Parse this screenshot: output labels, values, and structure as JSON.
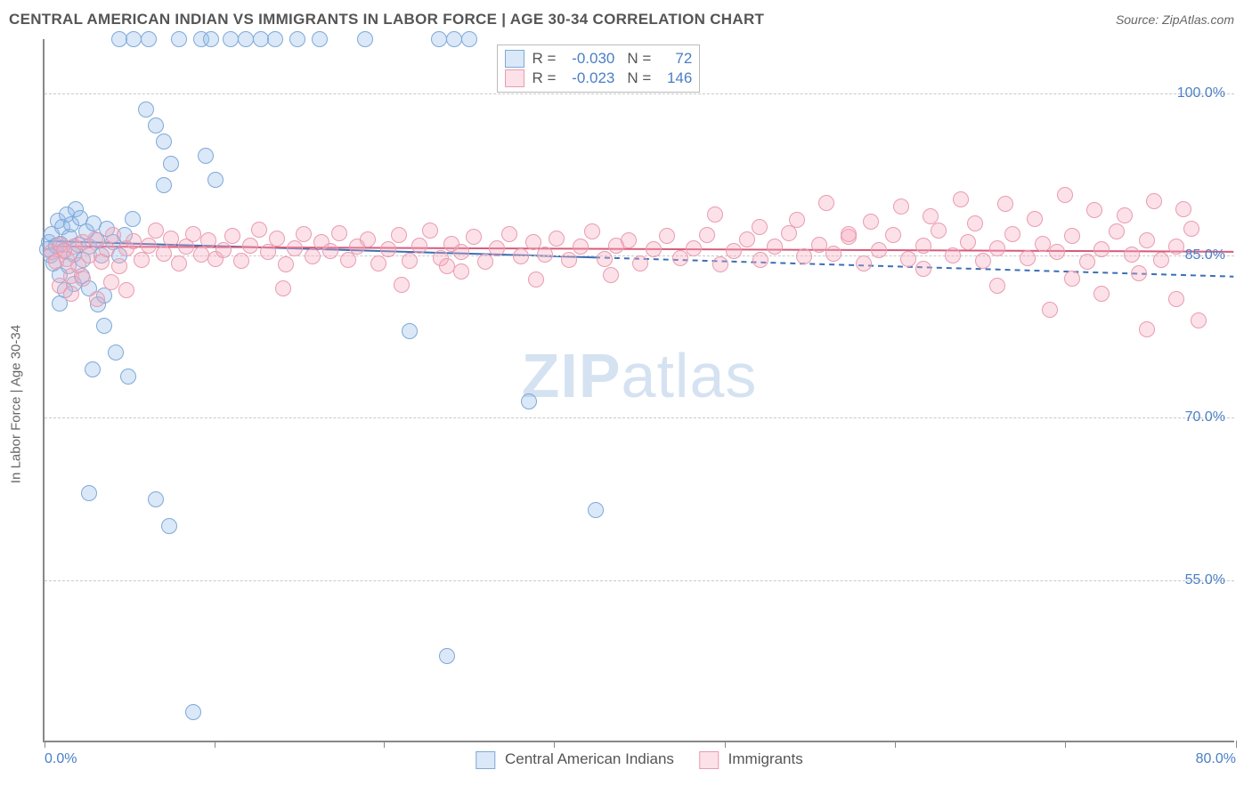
{
  "title": "CENTRAL AMERICAN INDIAN VS IMMIGRANTS IN LABOR FORCE | AGE 30-34 CORRELATION CHART",
  "source": "Source: ZipAtlas.com",
  "ylabel": "In Labor Force | Age 30-34",
  "watermark_a": "ZIP",
  "watermark_b": "atlas",
  "chart": {
    "type": "scatter",
    "xlim": [
      0,
      80
    ],
    "ylim": [
      40,
      105
    ],
    "xlabel_min": "0.0%",
    "xlabel_max": "80.0%",
    "ytick_values": [
      55,
      70,
      85,
      100
    ],
    "ytick_labels": [
      "55.0%",
      "70.0%",
      "85.0%",
      "100.0%"
    ],
    "xtick_values": [
      0,
      11.4,
      22.8,
      34.2,
      45.7,
      57.1,
      68.5,
      80
    ],
    "grid_color": "#c9c9c9",
    "background": "#ffffff",
    "marker_radius": 9,
    "series": [
      {
        "name": "Central American Indians",
        "fill": "rgba(150,190,235,0.35)",
        "stroke": "#7fa9d8",
        "R_label": "R =",
        "R": "-0.030",
        "N_label": "N =",
        "N": "72",
        "trend": {
          "y_at_x0": 86.3,
          "y_at_x80": 83.0,
          "stroke": "#3b6fb5",
          "width": 2,
          "dash_ext": "6,5"
        },
        "points": [
          [
            0.2,
            85.6
          ],
          [
            0.3,
            86.2
          ],
          [
            0.4,
            85.0
          ],
          [
            0.5,
            87.0
          ],
          [
            0.6,
            84.3
          ],
          [
            0.8,
            85.9
          ],
          [
            0.9,
            88.2
          ],
          [
            1.0,
            83.2
          ],
          [
            1.1,
            86.1
          ],
          [
            1.2,
            87.6
          ],
          [
            1.3,
            85.4
          ],
          [
            1.5,
            88.8
          ],
          [
            1.6,
            84.0
          ],
          [
            1.7,
            86.7
          ],
          [
            1.8,
            87.9
          ],
          [
            2.0,
            85.1
          ],
          [
            2.1,
            89.3
          ],
          [
            2.3,
            86.0
          ],
          [
            2.4,
            88.5
          ],
          [
            2.6,
            84.6
          ],
          [
            2.8,
            87.2
          ],
          [
            3.0,
            85.8
          ],
          [
            3.3,
            88.0
          ],
          [
            3.5,
            86.4
          ],
          [
            3.8,
            85.0
          ],
          [
            4.2,
            87.5
          ],
          [
            4.6,
            86.2
          ],
          [
            5.0,
            85.0
          ],
          [
            5.4,
            86.9
          ],
          [
            5.9,
            88.4
          ],
          [
            2.0,
            82.4
          ],
          [
            2.5,
            83.1
          ],
          [
            3.0,
            82.0
          ],
          [
            3.6,
            80.5
          ],
          [
            4.0,
            81.3
          ],
          [
            1.4,
            81.8
          ],
          [
            1.0,
            80.6
          ],
          [
            4.0,
            78.5
          ],
          [
            4.8,
            76.0
          ],
          [
            5.6,
            73.8
          ],
          [
            3.2,
            74.5
          ],
          [
            3.0,
            63.0
          ],
          [
            7.5,
            62.5
          ],
          [
            8.4,
            60.0
          ],
          [
            5.0,
            105.0
          ],
          [
            6.0,
            105.0
          ],
          [
            7.0,
            105.0
          ],
          [
            9.0,
            105.0
          ],
          [
            10.5,
            105.0
          ],
          [
            11.2,
            105.0
          ],
          [
            12.5,
            105.0
          ],
          [
            13.5,
            105.0
          ],
          [
            14.5,
            105.0
          ],
          [
            15.5,
            105.0
          ],
          [
            17.0,
            105.0
          ],
          [
            18.5,
            105.0
          ],
          [
            21.5,
            105.0
          ],
          [
            26.5,
            105.0
          ],
          [
            27.5,
            105.0
          ],
          [
            28.5,
            105.0
          ],
          [
            6.8,
            98.5
          ],
          [
            7.5,
            97.0
          ],
          [
            8.0,
            95.5
          ],
          [
            8.5,
            93.5
          ],
          [
            8.0,
            91.5
          ],
          [
            10.8,
            94.2
          ],
          [
            11.5,
            92.0
          ],
          [
            24.5,
            78.0
          ],
          [
            32.5,
            71.5
          ],
          [
            37.0,
            61.5
          ],
          [
            27.0,
            48.0
          ],
          [
            10.0,
            42.8
          ]
        ]
      },
      {
        "name": "Immigrants",
        "fill": "rgba(245,170,190,0.35)",
        "stroke": "#e99cb0",
        "R_label": "R =",
        "R": "-0.023",
        "N_label": "N =",
        "N": "146",
        "trend": {
          "y_at_x0": 85.8,
          "y_at_x80": 85.3,
          "stroke": "#d85b7b",
          "width": 2
        },
        "points": [
          [
            0.5,
            85.3
          ],
          [
            0.8,
            84.4
          ],
          [
            1.0,
            86.0
          ],
          [
            1.3,
            85.5
          ],
          [
            1.5,
            84.7
          ],
          [
            1.8,
            83.1
          ],
          [
            2.0,
            85.8
          ],
          [
            2.3,
            84.1
          ],
          [
            2.6,
            86.2
          ],
          [
            3.0,
            85.0
          ],
          [
            3.4,
            86.5
          ],
          [
            3.8,
            84.4
          ],
          [
            4.2,
            85.6
          ],
          [
            4.6,
            86.9
          ],
          [
            5.0,
            84.0
          ],
          [
            5.5,
            85.7
          ],
          [
            6.0,
            86.3
          ],
          [
            6.5,
            84.6
          ],
          [
            7.0,
            85.9
          ],
          [
            7.5,
            87.3
          ],
          [
            8.0,
            85.2
          ],
          [
            8.5,
            86.6
          ],
          [
            9.0,
            84.3
          ],
          [
            9.5,
            85.8
          ],
          [
            10.0,
            87.0
          ],
          [
            10.5,
            85.1
          ],
          [
            11.0,
            86.4
          ],
          [
            11.5,
            84.7
          ],
          [
            12.0,
            85.5
          ],
          [
            12.6,
            86.8
          ],
          [
            13.2,
            84.5
          ],
          [
            13.8,
            85.9
          ],
          [
            14.4,
            87.4
          ],
          [
            15.0,
            85.3
          ],
          [
            15.6,
            86.6
          ],
          [
            16.2,
            84.2
          ],
          [
            16.8,
            85.7
          ],
          [
            17.4,
            87.0
          ],
          [
            18.0,
            84.9
          ],
          [
            18.6,
            86.2
          ],
          [
            19.2,
            85.4
          ],
          [
            19.8,
            87.1
          ],
          [
            20.4,
            84.6
          ],
          [
            21.0,
            85.8
          ],
          [
            21.7,
            86.5
          ],
          [
            22.4,
            84.3
          ],
          [
            23.1,
            85.6
          ],
          [
            23.8,
            86.9
          ],
          [
            24.5,
            84.5
          ],
          [
            25.2,
            85.9
          ],
          [
            25.9,
            87.3
          ],
          [
            26.6,
            84.8
          ],
          [
            27.3,
            86.1
          ],
          [
            28.0,
            85.3
          ],
          [
            28.8,
            86.7
          ],
          [
            29.6,
            84.4
          ],
          [
            30.4,
            85.7
          ],
          [
            31.2,
            87.0
          ],
          [
            32.0,
            84.9
          ],
          [
            32.8,
            86.2
          ],
          [
            33.6,
            85.1
          ],
          [
            34.4,
            86.6
          ],
          [
            35.2,
            84.6
          ],
          [
            36.0,
            85.8
          ],
          [
            36.8,
            87.2
          ],
          [
            37.6,
            84.7
          ],
          [
            38.4,
            85.9
          ],
          [
            39.2,
            86.4
          ],
          [
            40.0,
            84.3
          ],
          [
            40.9,
            85.6
          ],
          [
            41.8,
            86.8
          ],
          [
            42.7,
            84.8
          ],
          [
            43.6,
            85.7
          ],
          [
            44.5,
            86.9
          ],
          [
            45.4,
            84.2
          ],
          [
            46.3,
            85.4
          ],
          [
            47.2,
            86.5
          ],
          [
            48.1,
            84.6
          ],
          [
            49.0,
            85.8
          ],
          [
            50.0,
            87.1
          ],
          [
            51.0,
            84.9
          ],
          [
            52.0,
            86.0
          ],
          [
            53.0,
            85.2
          ],
          [
            54.0,
            86.7
          ],
          [
            55.0,
            84.3
          ],
          [
            56.0,
            85.5
          ],
          [
            57.0,
            86.9
          ],
          [
            58.0,
            84.7
          ],
          [
            59.0,
            85.9
          ],
          [
            60.0,
            87.3
          ],
          [
            61.0,
            85.0
          ],
          [
            62.0,
            86.2
          ],
          [
            63.0,
            84.5
          ],
          [
            64.0,
            85.7
          ],
          [
            65.0,
            87.0
          ],
          [
            66.0,
            84.8
          ],
          [
            67.0,
            86.1
          ],
          [
            68.0,
            85.3
          ],
          [
            69.0,
            86.8
          ],
          [
            70.0,
            84.4
          ],
          [
            71.0,
            85.6
          ],
          [
            72.0,
            87.2
          ],
          [
            73.0,
            85.1
          ],
          [
            74.0,
            86.4
          ],
          [
            75.0,
            84.6
          ],
          [
            76.0,
            85.8
          ],
          [
            77.0,
            87.5
          ],
          [
            1.0,
            82.2
          ],
          [
            1.8,
            81.5
          ],
          [
            2.6,
            82.9
          ],
          [
            3.5,
            81.0
          ],
          [
            4.5,
            82.5
          ],
          [
            5.5,
            81.8
          ],
          [
            16.0,
            82.0
          ],
          [
            24.0,
            82.3
          ],
          [
            28.0,
            83.5
          ],
          [
            33.0,
            82.8
          ],
          [
            38.0,
            83.2
          ],
          [
            27.0,
            84.0
          ],
          [
            45.0,
            88.8
          ],
          [
            48.0,
            87.6
          ],
          [
            50.5,
            88.3
          ],
          [
            52.5,
            89.9
          ],
          [
            55.5,
            88.1
          ],
          [
            54.0,
            87.0
          ],
          [
            57.5,
            89.5
          ],
          [
            59.5,
            88.6
          ],
          [
            61.5,
            90.2
          ],
          [
            62.5,
            88.0
          ],
          [
            64.5,
            89.8
          ],
          [
            66.5,
            88.4
          ],
          [
            68.5,
            90.6
          ],
          [
            70.5,
            89.2
          ],
          [
            72.5,
            88.7
          ],
          [
            74.5,
            90.0
          ],
          [
            76.5,
            89.3
          ],
          [
            59.0,
            83.8
          ],
          [
            64.0,
            82.2
          ],
          [
            69.0,
            82.9
          ],
          [
            71.0,
            81.5
          ],
          [
            73.5,
            83.4
          ],
          [
            76.0,
            81.0
          ],
          [
            77.5,
            79.0
          ],
          [
            74.0,
            78.2
          ],
          [
            67.5,
            80.0
          ]
        ]
      }
    ]
  },
  "legend": {
    "series1": "Central American Indians",
    "series2": "Immigrants"
  }
}
